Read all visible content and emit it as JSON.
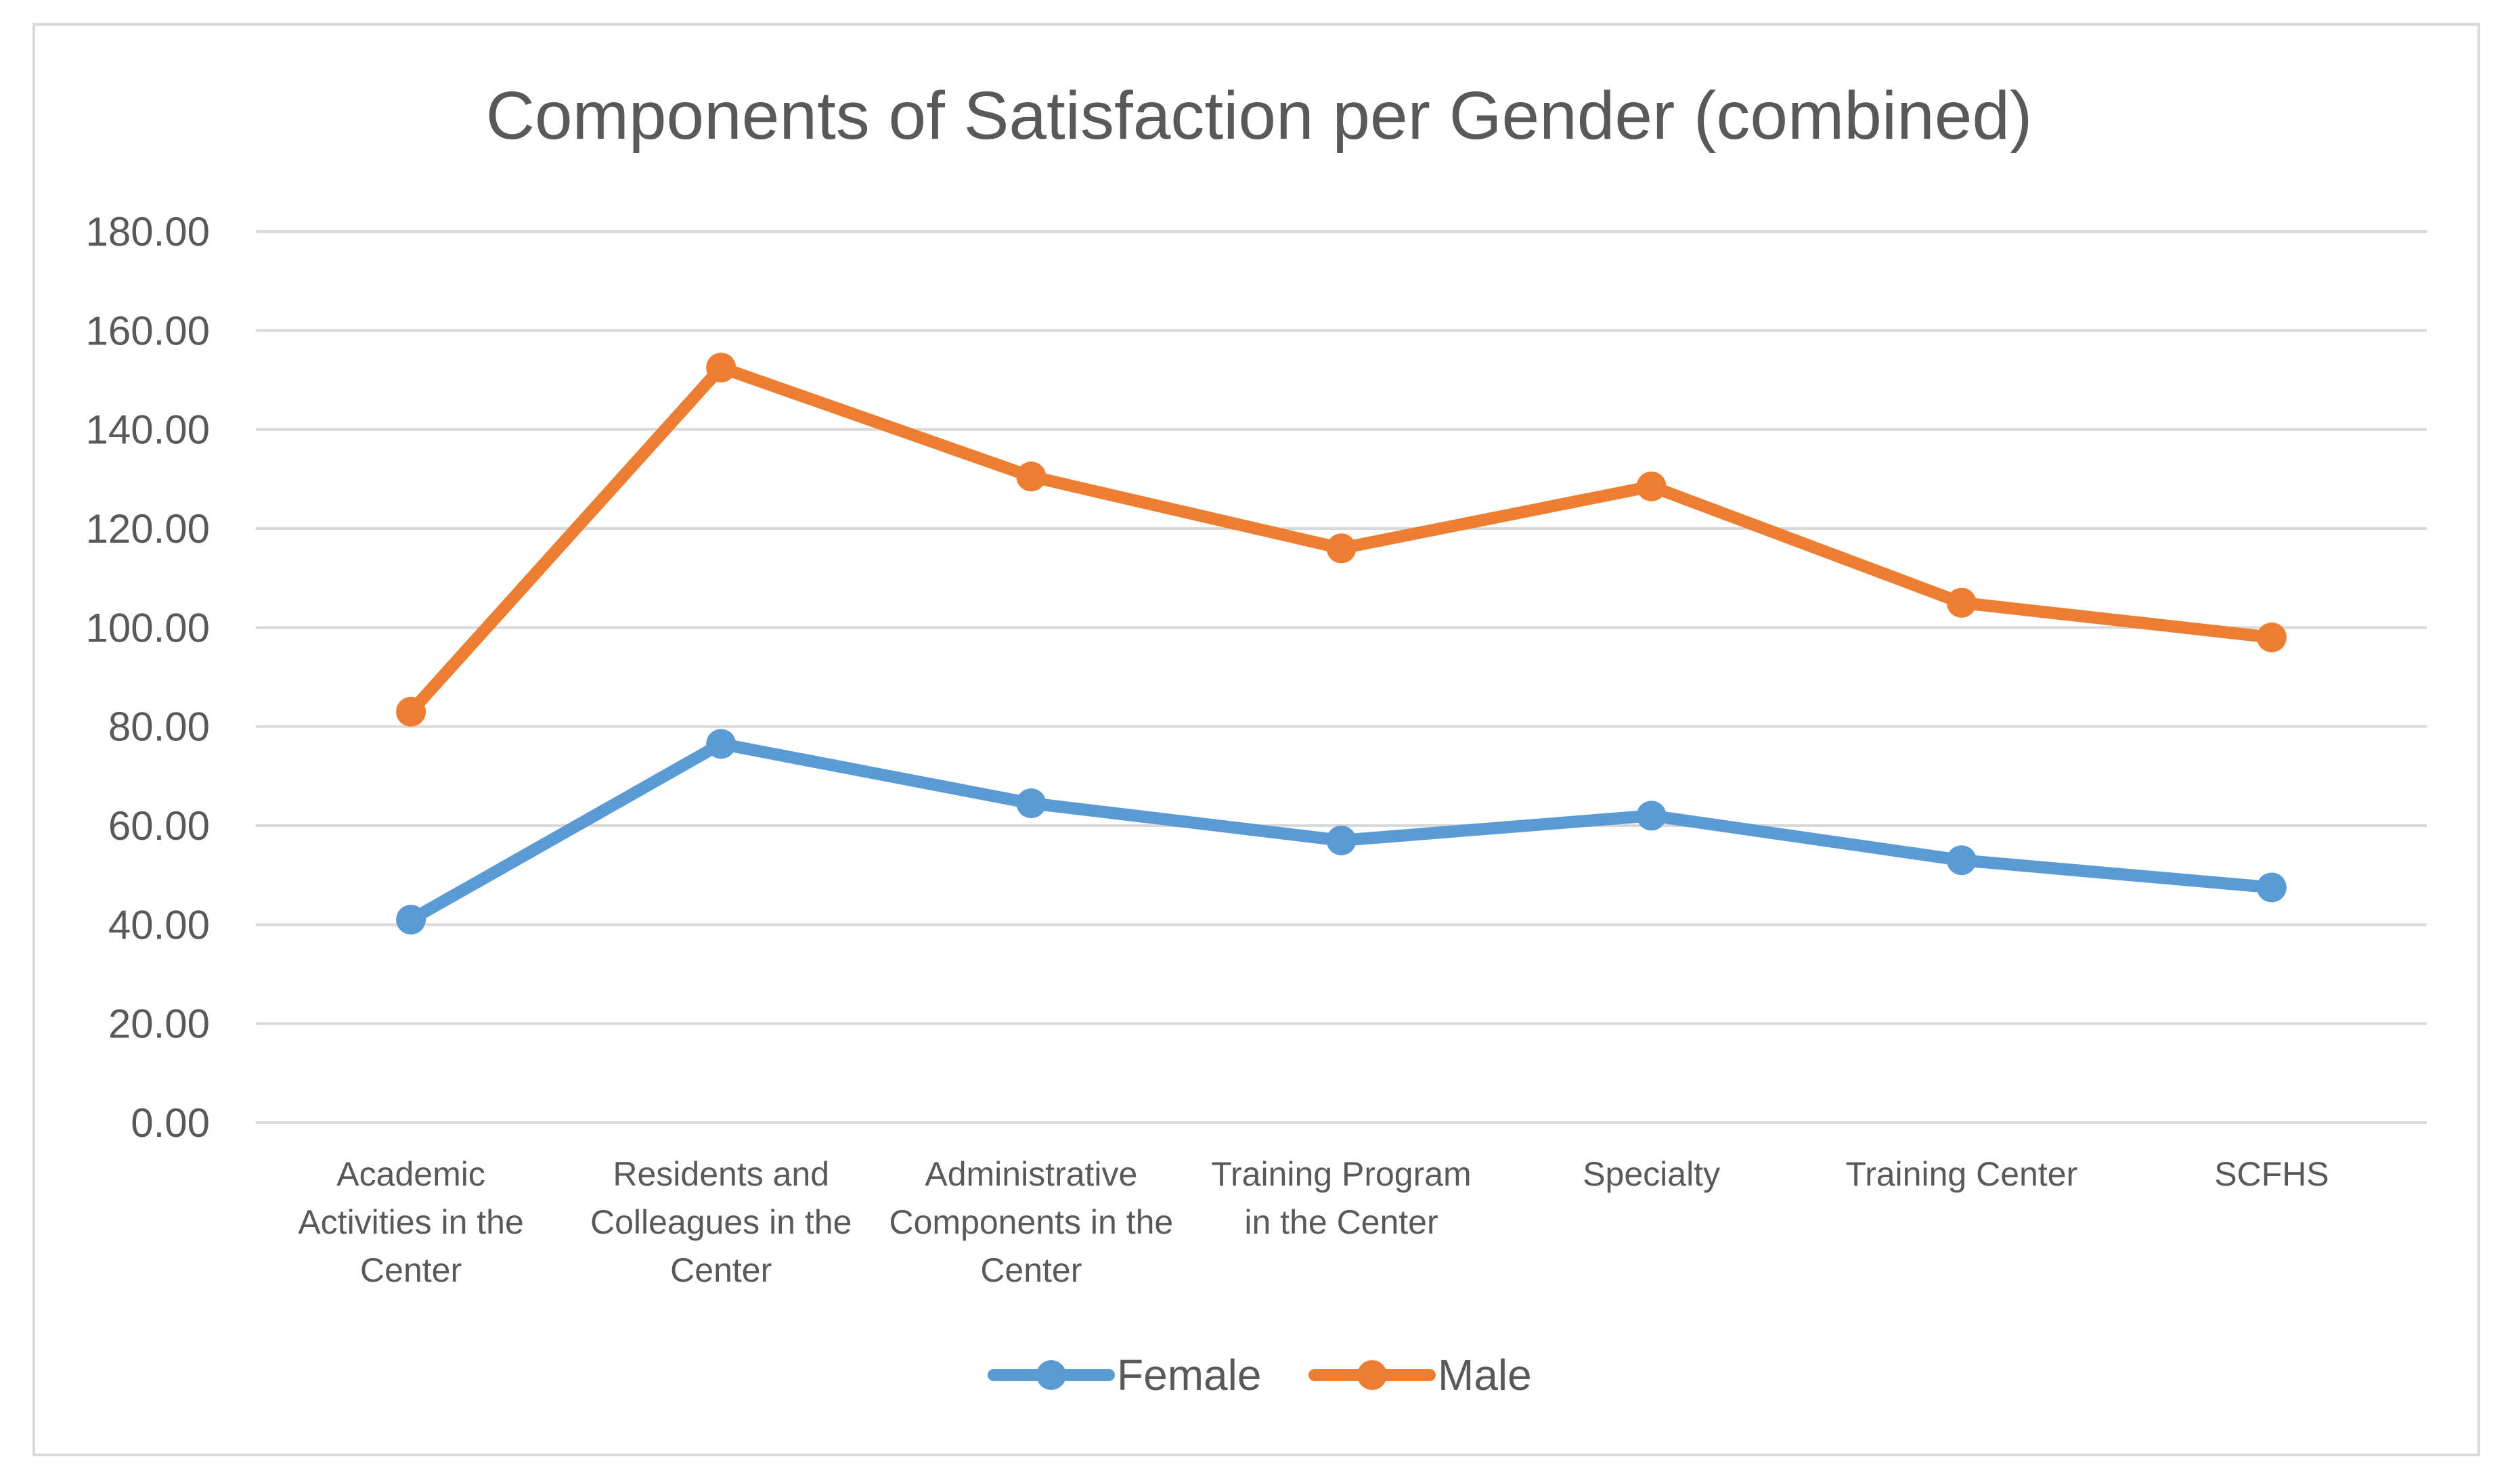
{
  "chart_data": {
    "type": "line",
    "title": "Components of Satisfaction per Gender (combined)",
    "xlabel": "",
    "ylabel": "",
    "ylim": [
      0,
      180
    ],
    "yticks": [
      "0.00",
      "20.00",
      "40.00",
      "60.00",
      "80.00",
      "100.00",
      "120.00",
      "140.00",
      "160.00",
      "180.00"
    ],
    "grid": true,
    "legend_position": "bottom",
    "categories": [
      [
        "Academic",
        "Activities in the",
        "Center"
      ],
      [
        "Residents and",
        "Colleagues in the",
        "Center"
      ],
      [
        "Administrative",
        "Components in the",
        "Center"
      ],
      [
        "Training Program",
        "in the Center"
      ],
      [
        "Specialty"
      ],
      [
        "Training Center"
      ],
      [
        "SCFHS"
      ]
    ],
    "series": [
      {
        "name": "Female",
        "color": "#5b9bd5",
        "values": [
          41,
          76.5,
          64.5,
          57,
          62,
          53,
          47.5
        ]
      },
      {
        "name": "Male",
        "color": "#ed7d31",
        "values": [
          83,
          152.5,
          130.5,
          116,
          128.5,
          105,
          98
        ]
      }
    ],
    "gridline_color": "#d9d9d9"
  }
}
